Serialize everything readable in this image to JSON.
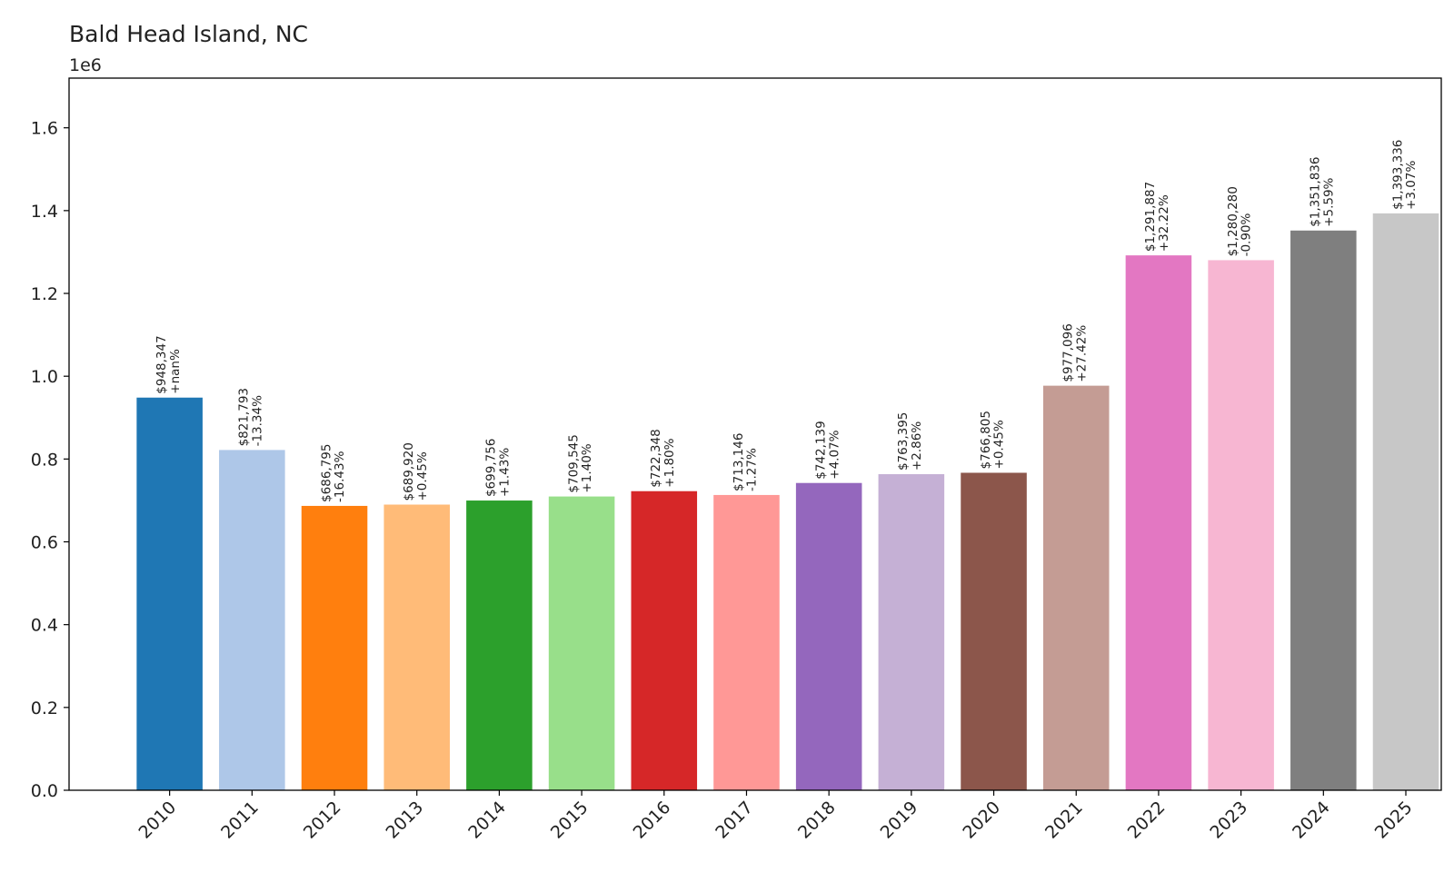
{
  "chart_data": {
    "type": "bar",
    "title": "Bald Head Island, NC",
    "y_offset_label": "1e6",
    "xlabel": "",
    "ylabel": "",
    "ylim": [
      0,
      1720000
    ],
    "grid": false,
    "categories": [
      "2010",
      "2011",
      "2012",
      "2013",
      "2014",
      "2015",
      "2016",
      "2017",
      "2018",
      "2019",
      "2020",
      "2021",
      "2022",
      "2023",
      "2024",
      "2025"
    ],
    "values": [
      948347,
      821793,
      686795,
      689920,
      699756,
      709545,
      722348,
      713146,
      742139,
      763395,
      766805,
      977096,
      1291887,
      1280280,
      1351836,
      1393336
    ],
    "value_labels": [
      "$948,347",
      "$821,793",
      "$686,795",
      "$689,920",
      "$699,756",
      "$709,545",
      "$722,348",
      "$713,146",
      "$742,139",
      "$763,395",
      "$766,805",
      "$977,096",
      "$1,291,887",
      "$1,280,280",
      "$1,351,836",
      "$1,393,336"
    ],
    "change_labels": [
      "+nan%",
      "-13.34%",
      "-16.43%",
      "+0.45%",
      "+1.43%",
      "+1.40%",
      "+1.80%",
      "-1.27%",
      "+4.07%",
      "+2.86%",
      "+0.45%",
      "+27.42%",
      "+32.22%",
      "-0.90%",
      "+5.59%",
      "+3.07%"
    ],
    "colors": [
      "#1f77b4",
      "#aec7e8",
      "#ff7f0e",
      "#ffbb78",
      "#2ca02c",
      "#98df8a",
      "#d62728",
      "#ff9896",
      "#9467bd",
      "#c5b0d5",
      "#8c564b",
      "#c49c94",
      "#e377c2",
      "#f7b6d2",
      "#7f7f7f",
      "#c7c7c7"
    ],
    "y_ticks": [
      0,
      200000,
      400000,
      600000,
      800000,
      1000000,
      1200000,
      1400000,
      1600000
    ],
    "y_tick_labels": [
      "0.0",
      "0.2",
      "0.4",
      "0.6",
      "0.8",
      "1.0",
      "1.2",
      "1.4",
      "1.6"
    ]
  }
}
